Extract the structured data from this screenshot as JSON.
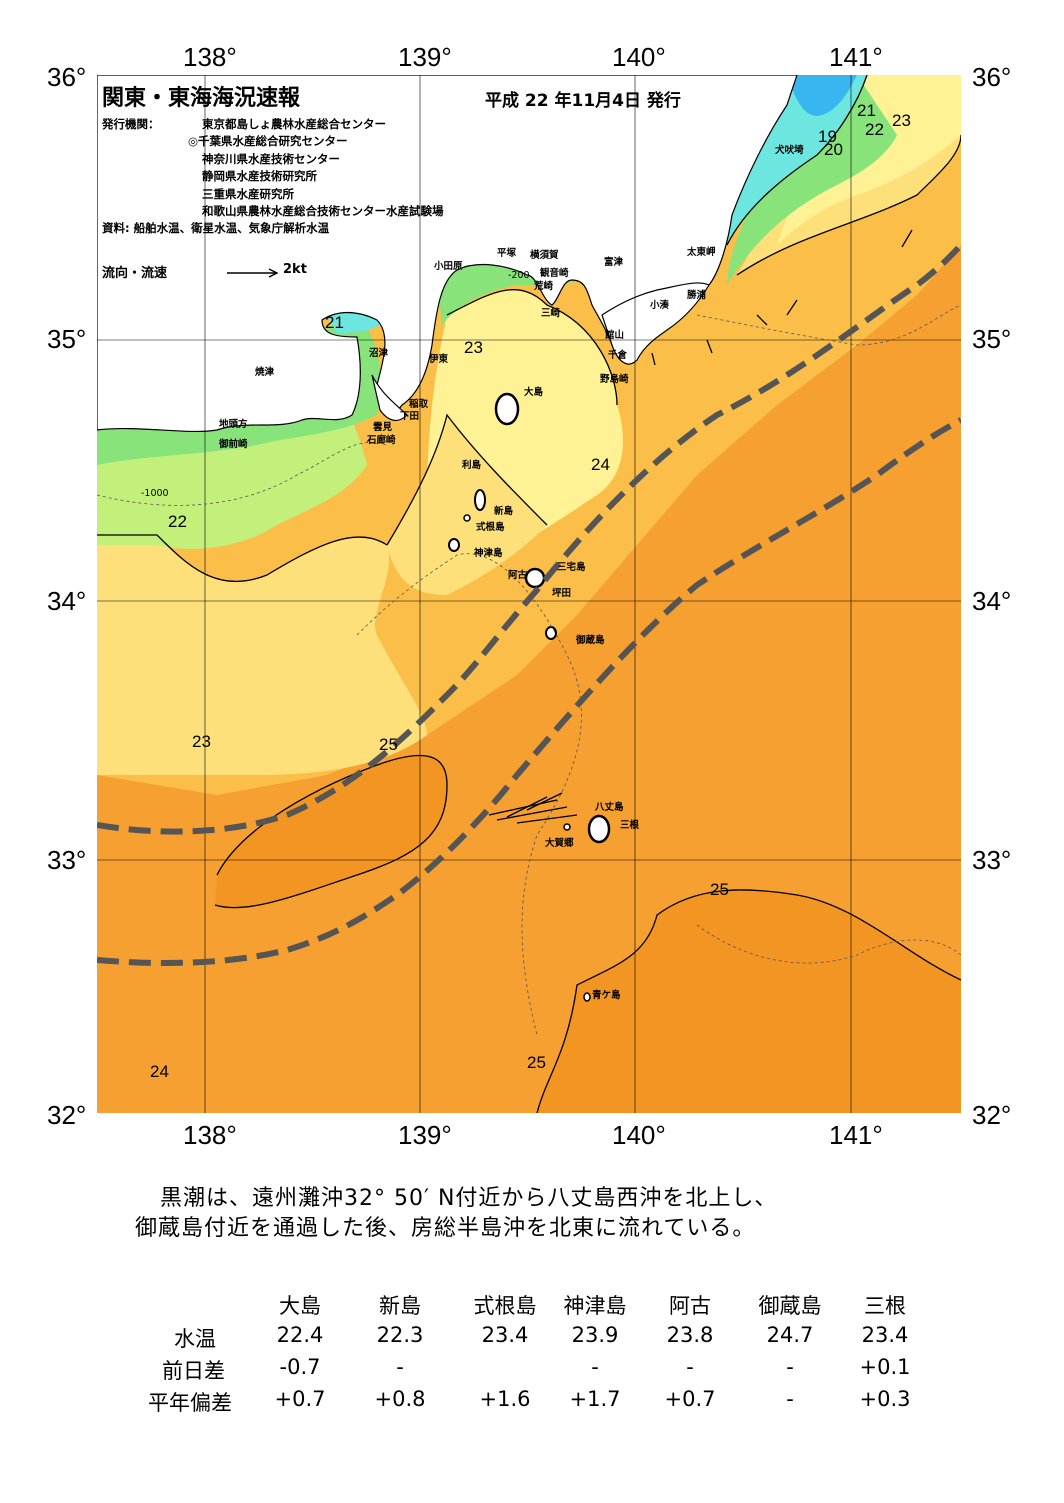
{
  "map": {
    "title": "関東・東海海況速報",
    "issued": "平成 22 年11月4日 発行",
    "agency_label": "発行機関：",
    "agencies": [
      "東京都島しょ農林水産総合センター",
      "◎千葉県水産総合研究センター",
      "神奈川県水産技術センター",
      "静岡県水産技術研究所",
      "三重県水産研究所",
      "和歌山県農林水産総合技術センター水産試験場"
    ],
    "source": "資料: 船舶水温、衛星水温、気象庁解析水温",
    "legend_label": "流向・流速",
    "legend_scale": "2kt",
    "lon_labels": [
      "138°",
      "139°",
      "140°",
      "141°"
    ],
    "lat_labels": [
      "36°",
      "35°",
      "34°",
      "33°",
      "32°"
    ],
    "isotherms": [
      "21",
      "22",
      "23",
      "23",
      "24",
      "25",
      "25",
      "25",
      "24",
      "21",
      "22",
      "23",
      "19",
      "20"
    ],
    "depth_labels": [
      "-200",
      "-1000"
    ],
    "places": [
      "犬吠埼",
      "太東岬",
      "勝浦",
      "小湊",
      "富津",
      "横須賀",
      "平塚",
      "小田原",
      "観音崎",
      "荒崎",
      "三崎",
      "館山",
      "千倉",
      "野島崎",
      "大島",
      "伊東",
      "沼津",
      "焼津",
      "稲取",
      "下田",
      "雲見",
      "石廊崎",
      "地頭方",
      "御前崎",
      "利島",
      "新島",
      "式根島",
      "神津島",
      "三宅島",
      "阿古",
      "坪田",
      "御蔵島",
      "八丈島",
      "三根",
      "大賀郷",
      "青ケ島"
    ],
    "colors": {
      "sea_warm": "#f5a030",
      "sea_warmest": "#f39523",
      "sea_mid": "#fbbf49",
      "sea_light": "#fde07a",
      "sea_pale": "#fef294",
      "sea_green_light": "#c2f07a",
      "sea_green": "#88e37b",
      "sea_cyan": "#6de6e0",
      "sea_blue": "#38b6ef",
      "land": "#ffffff",
      "kuroshio": "#555555"
    }
  },
  "summary": {
    "line1": "黒潮は、遠州灘沖32° 50′ N付近から八丈島西沖を北上し、",
    "line2": "御蔵島付近を通過した後、房総半島沖を北東に流れている。"
  },
  "table": {
    "headers": [
      "大島",
      "新島",
      "式根島",
      "神津島",
      "阿古",
      "御蔵島",
      "三根"
    ],
    "rows": [
      {
        "label": "水温",
        "values": [
          "22.4",
          "22.3",
          "23.4",
          "23.9",
          "23.8",
          "24.7",
          "23.4"
        ]
      },
      {
        "label": "前日差",
        "values": [
          "-0.7",
          "-",
          "",
          "-",
          "-",
          "-",
          "+0.1"
        ]
      },
      {
        "label": "平年偏差",
        "values": [
          "+0.7",
          "+0.8",
          "+1.6",
          "+1.7",
          "+0.7",
          "-",
          "+0.3"
        ]
      }
    ]
  }
}
